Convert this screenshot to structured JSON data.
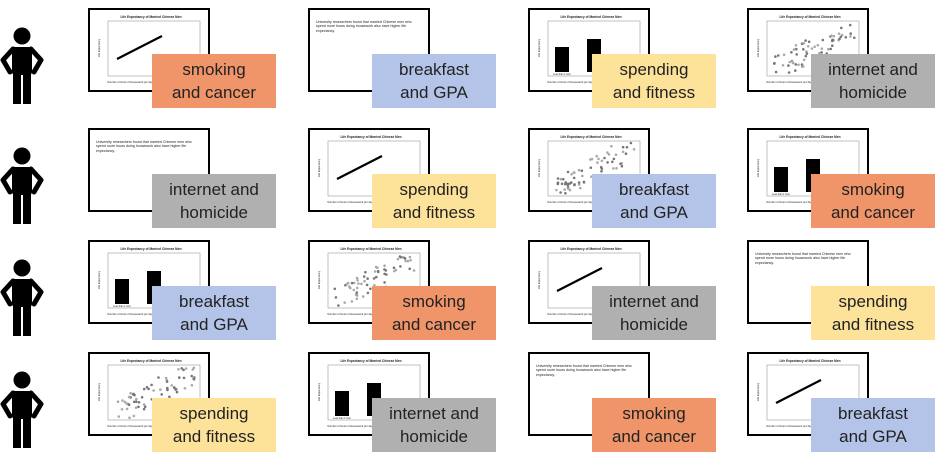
{
  "colors": {
    "orange": "#F0956A",
    "blue": "#B4C3E8",
    "yellow": "#FDE29A",
    "gray": "#B0B0B0"
  },
  "icons": {
    "person": "person-icon"
  },
  "card_texts": {
    "chart_title": "Life Expectancy of Married Chinese Men",
    "y_axis_label": "Life Expectancy",
    "x_axis_label": "Number of hours of Housework per day",
    "bar_axis_label": "Less than 1 hour",
    "paragraph": "University researchers found that married Chinese men who spend more hours doing housework also have higher life expectancy."
  },
  "rows": [
    {
      "cells": [
        {
          "card": "line",
          "line1": "smoking",
          "line2": "and cancer",
          "color": "orange"
        },
        {
          "card": "text",
          "line1": "breakfast",
          "line2": "and GPA",
          "color": "blue"
        },
        {
          "card": "bar",
          "line1": "spending",
          "line2": "and fitness",
          "color": "yellow"
        },
        {
          "card": "scatter",
          "line1": "internet and",
          "line2": "homicide",
          "color": "gray"
        }
      ]
    },
    {
      "cells": [
        {
          "card": "text",
          "line1": "internet and",
          "line2": "homicide",
          "color": "gray"
        },
        {
          "card": "line",
          "line1": "spending",
          "line2": "and fitness",
          "color": "yellow"
        },
        {
          "card": "scatter",
          "line1": "breakfast",
          "line2": "and GPA",
          "color": "blue"
        },
        {
          "card": "bar",
          "line1": "smoking",
          "line2": "and cancer",
          "color": "orange"
        }
      ]
    },
    {
      "cells": [
        {
          "card": "bar",
          "line1": "breakfast",
          "line2": "and GPA",
          "color": "blue"
        },
        {
          "card": "scatter",
          "line1": "smoking",
          "line2": "and cancer",
          "color": "orange"
        },
        {
          "card": "line",
          "line1": "internet and",
          "line2": "homicide",
          "color": "gray"
        },
        {
          "card": "text",
          "line1": "spending",
          "line2": "and fitness",
          "color": "yellow"
        }
      ]
    },
    {
      "cells": [
        {
          "card": "scatter",
          "line1": "spending",
          "line2": "and fitness",
          "color": "yellow"
        },
        {
          "card": "bar",
          "line1": "internet and",
          "line2": "homicide",
          "color": "gray"
        },
        {
          "card": "text",
          "line1": "smoking",
          "line2": "and cancer",
          "color": "orange"
        },
        {
          "card": "line",
          "line1": "breakfast",
          "line2": "and GPA",
          "color": "blue"
        }
      ]
    }
  ]
}
